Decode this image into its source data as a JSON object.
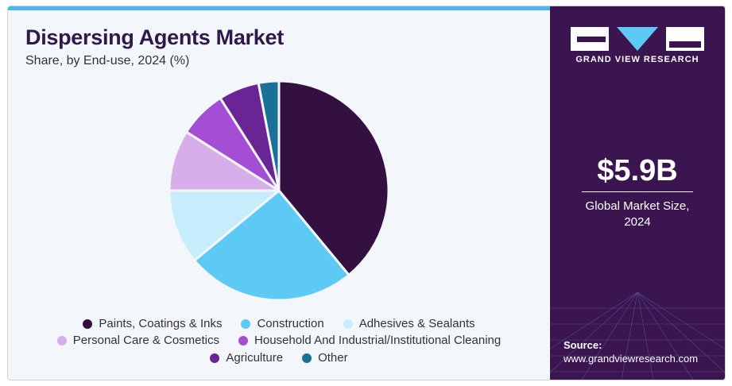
{
  "header": {
    "title": "Dispersing Agents Market",
    "subtitle": "Share, by End-use, 2024 (%)"
  },
  "chart_data": {
    "type": "pie",
    "title": "Dispersing Agents Market",
    "subtitle": "Share, by End-use, 2024 (%)",
    "categories": [
      "Paints, Coatings & Inks",
      "Construction",
      "Adhesives & Sealants",
      "Personal Care & Cosmetics",
      "Household And Industrial/Institutional Cleaning",
      "Agriculture",
      "Other"
    ],
    "values": [
      39,
      25,
      11,
      9,
      7,
      6,
      3
    ],
    "colors": [
      "#33103f",
      "#5ccaf4",
      "#c7ecfb",
      "#d8aeea",
      "#a34ed4",
      "#6a2594",
      "#1a7198"
    ],
    "legend_position": "bottom"
  },
  "legend_rows": [
    [
      0,
      1,
      2
    ],
    [
      3,
      4
    ],
    [
      5,
      6
    ]
  ],
  "sidebar": {
    "logo_text": "GRAND VIEW RESEARCH",
    "market_size": "$5.9B",
    "market_label_line1": "Global Market Size,",
    "market_label_line2": "2024",
    "source_label": "Source:",
    "source_url": "www.grandviewresearch.com"
  }
}
